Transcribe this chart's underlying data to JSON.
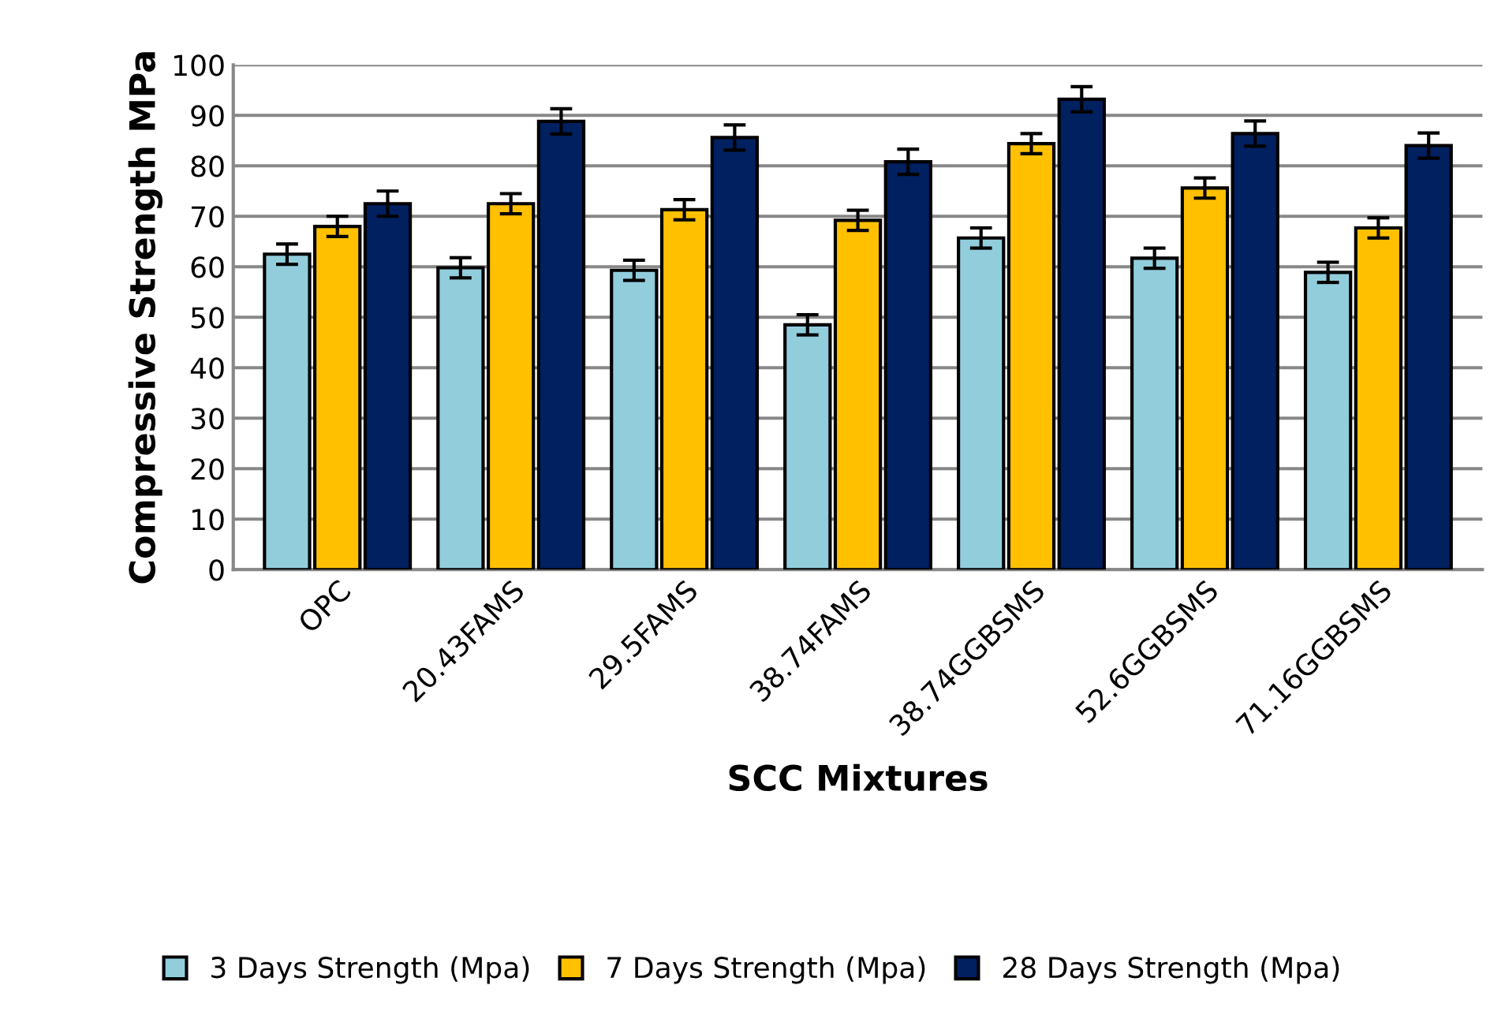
{
  "chart_data": {
    "type": "bar",
    "xlabel": "SCC Mixtures",
    "ylabel": "Compressive Strength MPa",
    "categories": [
      "OPC",
      "20.43FAMS",
      "29.5FAMS",
      "38.74FAMS",
      "38.74GGBSMS",
      "52.6GGBSMS",
      "71.16GGBSMS"
    ],
    "series": [
      {
        "name": "3 Days Strength (Mpa)",
        "color": "#92cddc",
        "values": [
          62.5,
          59.8,
          59.3,
          48.5,
          65.7,
          61.7,
          58.9
        ],
        "errors": [
          2,
          2,
          2,
          2,
          2,
          2,
          2
        ]
      },
      {
        "name": "7 Days Strength (Mpa)",
        "color": "#ffc000",
        "values": [
          68,
          72.5,
          71.3,
          69.2,
          84.4,
          75.6,
          67.7
        ],
        "errors": [
          2,
          2,
          2,
          2,
          2,
          2,
          2
        ]
      },
      {
        "name": "28 Days Strength (Mpa)",
        "color": "#002060",
        "values": [
          72.5,
          88.8,
          85.6,
          80.8,
          93.2,
          86.4,
          84
        ],
        "errors": [
          2.5,
          2.5,
          2.5,
          2.5,
          2.5,
          2.5,
          2.5
        ]
      }
    ],
    "ylim": [
      0,
      100
    ],
    "yticks": [
      0,
      10,
      20,
      30,
      40,
      50,
      60,
      70,
      80,
      90,
      100
    ],
    "grid": "y",
    "legend": "bottom"
  }
}
